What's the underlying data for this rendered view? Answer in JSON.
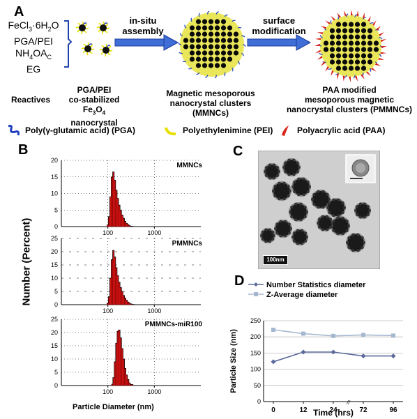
{
  "panel_a": {
    "letter": "A",
    "reactives_lines": [
      "FeCl3·6H2O",
      "PGA/PEI",
      "NH4OAc",
      "EG"
    ],
    "step1_label": [
      "in-situ",
      "assembly"
    ],
    "step2_label": [
      "surface",
      "modification"
    ],
    "captions": {
      "reactives": "Reactives",
      "nanocrystal": [
        "PGA/PEI",
        "co-stabilized",
        "Fe3O4 nanocrystal"
      ],
      "mmnc": [
        "Magnetic mesoporous",
        "nanocrystal clusters (MMNCs)"
      ],
      "pmmnc": [
        "PAA modified",
        "mesoporous magnetic",
        "nanocrystal clusters (PMMNCs)"
      ]
    },
    "legend": [
      {
        "label": "Poly(γ-glutamic acid) (PGA)",
        "icon": "blue-squiggle-icon",
        "color": "#1f3fbf"
      },
      {
        "label": "Polyethylenimine (PEI)",
        "icon": "yellow-arc-icon",
        "color": "#e8e000"
      },
      {
        "label": "Polyacrylic acid (PAA)",
        "icon": "red-flame-icon",
        "color": "#d8261b"
      }
    ]
  },
  "panel_b": {
    "letter": "B",
    "ylabel": "Number (Percent)",
    "xlabel": "Particle Diameter (nm)"
  },
  "panel_c": {
    "letter": "C",
    "scalebar": "100nm"
  },
  "panel_d": {
    "letter": "D"
  },
  "chart_data": [
    {
      "type": "bar",
      "title": "MMNCs",
      "x_scale": "log",
      "xlim": [
        10,
        10000
      ],
      "xticks": [
        "100",
        "1000"
      ],
      "ylim": [
        0,
        20
      ],
      "yticks": [
        "0",
        "5",
        "10",
        "15",
        "20"
      ],
      "bins_x": [
        95,
        102,
        110,
        118,
        127,
        137,
        147,
        158,
        170,
        183,
        197,
        212,
        228,
        245,
        264,
        284,
        305
      ],
      "values": [
        0.5,
        3,
        9,
        15,
        16.5,
        14,
        11,
        8.5,
        6.5,
        5,
        3.5,
        2.5,
        1.6,
        1,
        0.6,
        0.3,
        0.1
      ],
      "color": "#d41111"
    },
    {
      "type": "bar",
      "title": "PMMNCs",
      "x_scale": "log",
      "xlim": [
        10,
        10000
      ],
      "xticks": [
        "100",
        "1000"
      ],
      "ylim": [
        0,
        25
      ],
      "yticks": [
        "0",
        "5",
        "10",
        "15",
        "20",
        "25"
      ],
      "bins_x": [
        95,
        102,
        110,
        118,
        127,
        137,
        147,
        158,
        170,
        183,
        197,
        212,
        228,
        245,
        264,
        284,
        305,
        328
      ],
      "values": [
        0.5,
        3,
        10,
        17,
        20.5,
        18,
        14,
        11,
        8.5,
        6.5,
        5,
        3.5,
        2.5,
        1.7,
        1,
        0.6,
        0.3,
        0.1
      ],
      "color": "#d41111"
    },
    {
      "type": "bar",
      "title": "PMMNCs-miR100",
      "x_scale": "log",
      "xlim": [
        10,
        10000
      ],
      "xticks": [
        "100",
        "1000"
      ],
      "ylim": [
        0,
        25
      ],
      "yticks": [
        "0",
        "5",
        "10",
        "15",
        "20",
        "25"
      ],
      "bins_x": [
        120,
        128,
        137,
        147,
        158,
        170,
        183,
        197,
        212,
        228,
        245,
        264,
        284,
        305
      ],
      "values": [
        0.5,
        3,
        9,
        16,
        20.5,
        21,
        18,
        14,
        10,
        6.5,
        4,
        2.3,
        1,
        0.4
      ],
      "color": "#d41111"
    },
    {
      "type": "line",
      "xlabel": "Time (hrs)",
      "ylabel": "Particle Size (nm)",
      "x": [
        "0",
        "12",
        "24",
        "72",
        "96"
      ],
      "ylim": [
        0,
        250
      ],
      "yticks": [
        "0",
        "50",
        "100",
        "150",
        "200",
        "250"
      ],
      "axis_break": "//",
      "series": [
        {
          "name": "Number Statistics diameter",
          "values": [
            123,
            153,
            153,
            141,
            141
          ],
          "color": "#5b6a9c"
        },
        {
          "name": "Z-Average diameter",
          "values": [
            222,
            210,
            203,
            206,
            204
          ],
          "color": "#a6b8cf"
        }
      ]
    }
  ]
}
